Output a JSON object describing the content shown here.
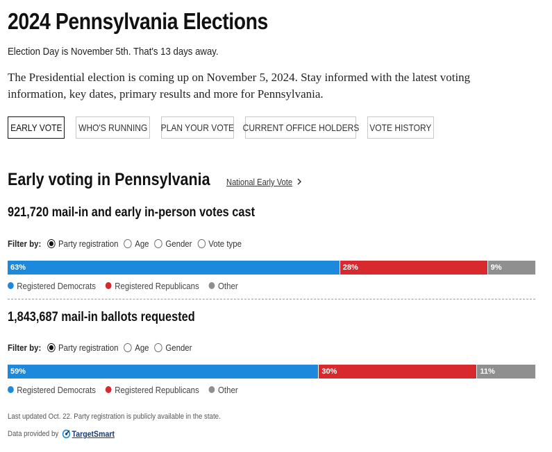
{
  "header": {
    "title": "2024 Pennsylvania Elections",
    "countdown": "Election Day is November 5th. That's 13 days away.",
    "intro": "The Presidential election is coming up on November 5, 2024. Stay informed with the latest voting information, key dates, primary results and more for Pennsylvania."
  },
  "tabs": [
    {
      "label": "EARLY VOTE",
      "active": true
    },
    {
      "label": "WHO'S RUNNING",
      "active": false
    },
    {
      "label": "PLAN YOUR VOTE",
      "active": false
    },
    {
      "label": "CURRENT OFFICE HOLDERS",
      "active": false
    },
    {
      "label": "VOTE HISTORY",
      "active": false
    }
  ],
  "section": {
    "title": "Early voting in Pennsylvania",
    "link_label": "National Early Vote",
    "link_icon": "chevron-right-icon"
  },
  "votes_cast": {
    "count": "921,720",
    "label": "mail-in and early in-person votes cast",
    "filter_label": "Filter by:",
    "filters": [
      {
        "label": "Party registration",
        "checked": true
      },
      {
        "label": "Age",
        "checked": false
      },
      {
        "label": "Gender",
        "checked": false
      },
      {
        "label": "Vote type",
        "checked": false
      }
    ],
    "segments": [
      {
        "label": "63%",
        "value": 63,
        "color": "#1d89dd"
      },
      {
        "label": "28%",
        "value": 28,
        "color": "#d8292f"
      },
      {
        "label": "9%",
        "value": 9,
        "color": "#8f8f8f"
      }
    ]
  },
  "ballots_requested": {
    "count": "1,843,687",
    "label": "mail-in ballots requested",
    "filter_label": "Filter by:",
    "filters": [
      {
        "label": "Party registration",
        "checked": true
      },
      {
        "label": "Age",
        "checked": false
      },
      {
        "label": "Gender",
        "checked": false
      }
    ],
    "segments": [
      {
        "label": "59%",
        "value": 59,
        "color": "#1d89dd"
      },
      {
        "label": "30%",
        "value": 30,
        "color": "#d8292f"
      },
      {
        "label": "11%",
        "value": 11,
        "color": "#8f8f8f"
      }
    ]
  },
  "legend": [
    {
      "label": "Registered Democrats",
      "color": "#1d89dd"
    },
    {
      "label": "Registered Republicans",
      "color": "#d8292f"
    },
    {
      "label": "Other",
      "color": "#8f8f8f"
    }
  ],
  "footer": {
    "updated": "Last updated Oct. 22. Party registration is publicly available in the state.",
    "provided_by": "Data provided by",
    "provider": "TargetSmart"
  }
}
